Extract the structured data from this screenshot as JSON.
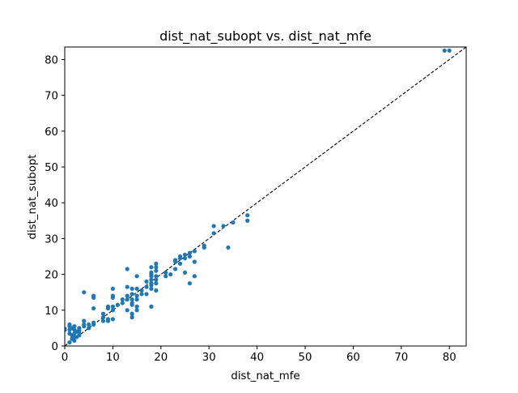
{
  "chart_data": {
    "type": "scatter",
    "title": "dist_nat_subopt vs. dist_nat_mfe",
    "xlabel": "dist_nat_mfe",
    "ylabel": "dist_nat_subopt",
    "xlim": [
      0,
      83.5
    ],
    "ylim": [
      0,
      83.5
    ],
    "xticks": [
      "0",
      "10",
      "20",
      "30",
      "40",
      "50",
      "60",
      "70",
      "80"
    ],
    "yticks": [
      "0",
      "10",
      "20",
      "30",
      "40",
      "50",
      "60",
      "70",
      "80"
    ],
    "grid": false,
    "legend": "none",
    "reference_line": {
      "style": "dashed",
      "color": "#000000",
      "from": [
        0,
        0
      ],
      "to": [
        83.5,
        83.5
      ]
    },
    "point_color": "#1f77b4",
    "points": [
      [
        0,
        4.5
      ],
      [
        0,
        4.8
      ],
      [
        1,
        1.0
      ],
      [
        1,
        3.5
      ],
      [
        1,
        4.5
      ],
      [
        1,
        5.5
      ],
      [
        1,
        6.0
      ],
      [
        1.5,
        2.0
      ],
      [
        1.5,
        3.0
      ],
      [
        1.5,
        5.0
      ],
      [
        2,
        1.5
      ],
      [
        2,
        2.5
      ],
      [
        2,
        3.5
      ],
      [
        2,
        4.5
      ],
      [
        2,
        5.5
      ],
      [
        2.5,
        2.5
      ],
      [
        2.5,
        4.0
      ],
      [
        3,
        3.0
      ],
      [
        3,
        4.0
      ],
      [
        3,
        4.5
      ],
      [
        3,
        5.0
      ],
      [
        4,
        5.5
      ],
      [
        4,
        6.0
      ],
      [
        4,
        7.0
      ],
      [
        4,
        15.0
      ],
      [
        5,
        5.0
      ],
      [
        5,
        6.0
      ],
      [
        6,
        6.0
      ],
      [
        6,
        6.5
      ],
      [
        6,
        10.5
      ],
      [
        6,
        13.5
      ],
      [
        6,
        14.0
      ],
      [
        8,
        7.0
      ],
      [
        8,
        8.0
      ],
      [
        8,
        9.0
      ],
      [
        9,
        7.0
      ],
      [
        9,
        7.5
      ],
      [
        9,
        10.5
      ],
      [
        9,
        11.0
      ],
      [
        10,
        7.5
      ],
      [
        10,
        10.0
      ],
      [
        10,
        11.0
      ],
      [
        10,
        13.5
      ],
      [
        10,
        14.0
      ],
      [
        10,
        16.0
      ],
      [
        11,
        11.5
      ],
      [
        12,
        12.0
      ],
      [
        12,
        13.0
      ],
      [
        13,
        10.0
      ],
      [
        13,
        13.0
      ],
      [
        13,
        14.0
      ],
      [
        13,
        16.5
      ],
      [
        13,
        21.5
      ],
      [
        14,
        8.0
      ],
      [
        14,
        9.0
      ],
      [
        14,
        11.5
      ],
      [
        14,
        12.0
      ],
      [
        14,
        13.0
      ],
      [
        14,
        14.5
      ],
      [
        14,
        16.0
      ],
      [
        15,
        10.0
      ],
      [
        15,
        11.0
      ],
      [
        15,
        13.0
      ],
      [
        15,
        14.0
      ],
      [
        15,
        16.0
      ],
      [
        15,
        19.5
      ],
      [
        16,
        14.5
      ],
      [
        16,
        15.5
      ],
      [
        17,
        14.5
      ],
      [
        17,
        16.5
      ],
      [
        17,
        18.0
      ],
      [
        18,
        11.0
      ],
      [
        18,
        16.0
      ],
      [
        18,
        17.0
      ],
      [
        18,
        17.5
      ],
      [
        18,
        18.5
      ],
      [
        18,
        19.5
      ],
      [
        18,
        20.0
      ],
      [
        18,
        20.5
      ],
      [
        18,
        22.0
      ],
      [
        19,
        15.5
      ],
      [
        19,
        17.5
      ],
      [
        19,
        18.5
      ],
      [
        19,
        19.5
      ],
      [
        19,
        21.0
      ],
      [
        19,
        22.0
      ],
      [
        19,
        23.0
      ],
      [
        21,
        19.5
      ],
      [
        21,
        20.5
      ],
      [
        22,
        20.0
      ],
      [
        23,
        21.5
      ],
      [
        23,
        23.5
      ],
      [
        23,
        24.0
      ],
      [
        24,
        23.0
      ],
      [
        24,
        24.5
      ],
      [
        24,
        25.0
      ],
      [
        25,
        20.5
      ],
      [
        25,
        24.5
      ],
      [
        25,
        25.5
      ],
      [
        26,
        17.5
      ],
      [
        26,
        25.0
      ],
      [
        26,
        26.0
      ],
      [
        27,
        19.5
      ],
      [
        27,
        23.5
      ],
      [
        27,
        26.5
      ],
      [
        29,
        27.5
      ],
      [
        29,
        28.0
      ],
      [
        31,
        31.5
      ],
      [
        31,
        33.5
      ],
      [
        33,
        33.5
      ],
      [
        34,
        27.5
      ],
      [
        35,
        34.5
      ],
      [
        38,
        35.0
      ],
      [
        38,
        36.5
      ],
      [
        79,
        82.5
      ],
      [
        80,
        82.5
      ]
    ]
  }
}
